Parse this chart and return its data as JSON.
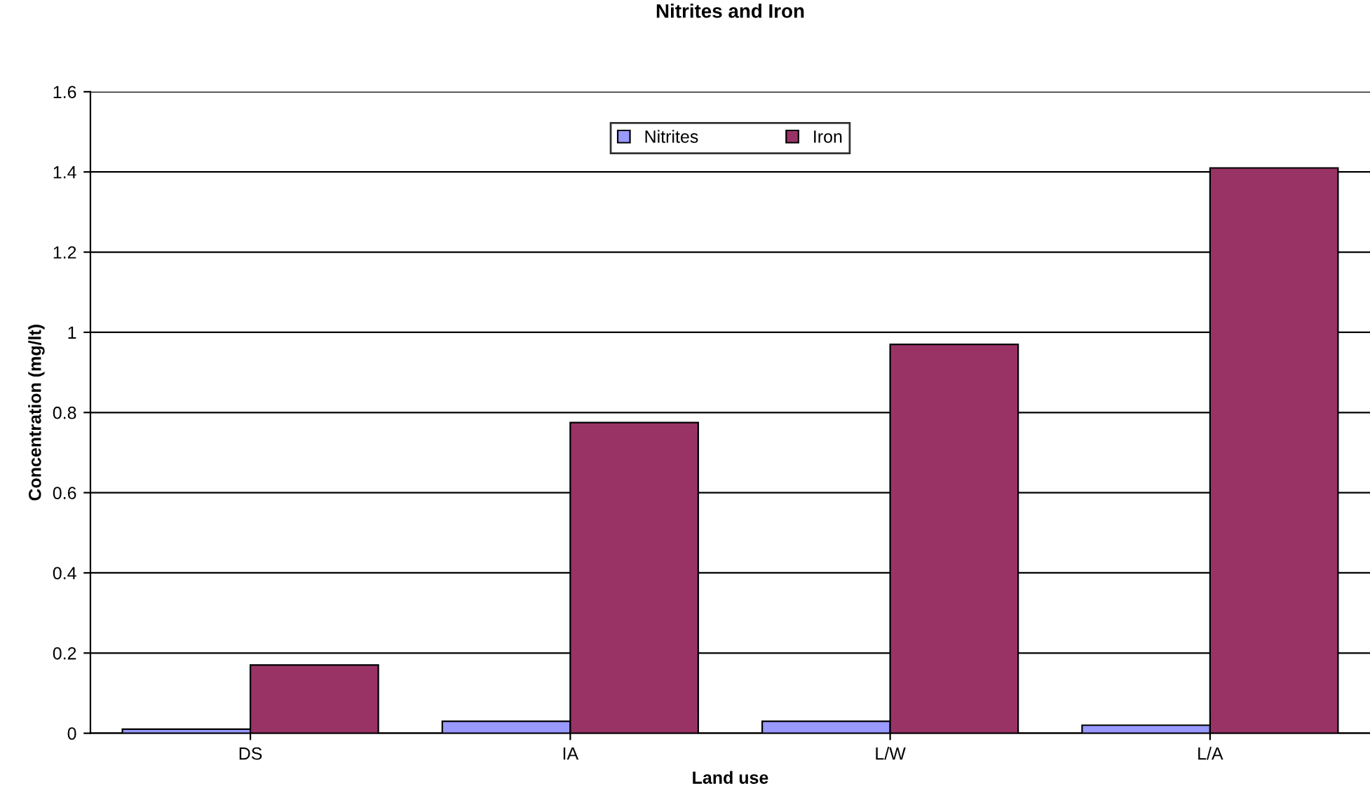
{
  "chart_data": {
    "type": "bar",
    "title": "Nitrites and Iron",
    "xlabel": "Land use",
    "ylabel": "Concentration (mg/lt)",
    "categories": [
      "DS",
      "IA",
      "L/W",
      "L/A"
    ],
    "series": [
      {
        "name": "Nitrites",
        "color": "#9999ff",
        "values": [
          0.01,
          0.03,
          0.03,
          0.02
        ]
      },
      {
        "name": "Iron",
        "color": "#993366",
        "values": [
          0.17,
          0.775,
          0.97,
          1.41
        ]
      }
    ],
    "ylim": [
      0,
      1.6
    ],
    "yticks": [
      0,
      0.2,
      0.4,
      0.6,
      0.8,
      1,
      1.2,
      1.4,
      1.6
    ],
    "grid": "y",
    "legend": "top"
  }
}
